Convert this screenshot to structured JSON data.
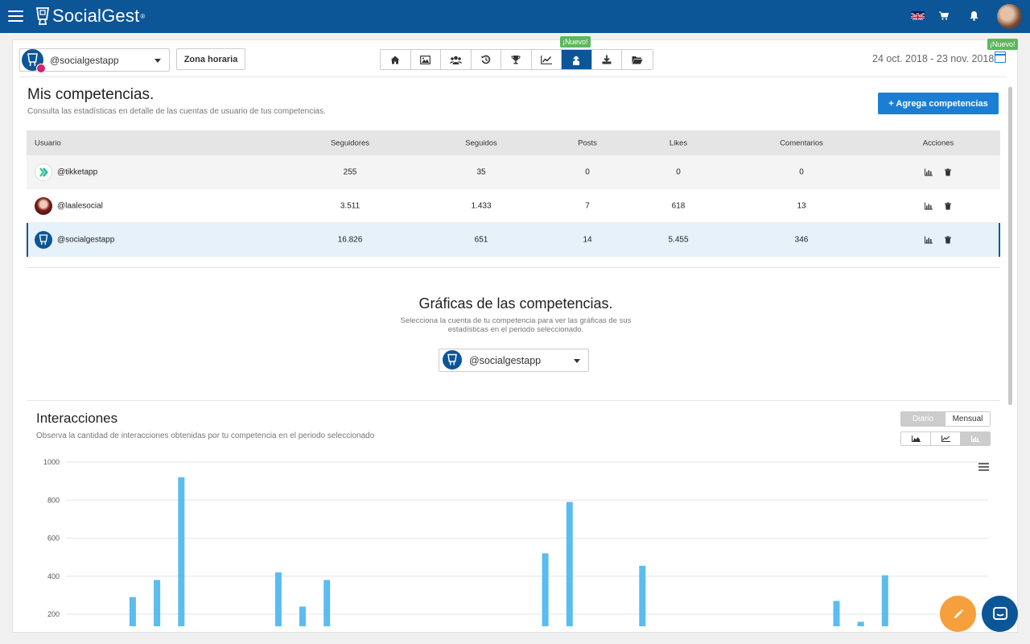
{
  "brand": {
    "name": "SocialGest",
    "tm": "®"
  },
  "account_select": {
    "value": "@socialgestapp"
  },
  "timezone_button": "Zona horaria",
  "toolbar": {
    "items": [
      "home-icon",
      "image-icon",
      "users-icon",
      "history-icon",
      "trophy-icon",
      "line-chart-icon",
      "competitors-icon",
      "download-icon",
      "folder-icon"
    ],
    "active_index": 6,
    "new_badge": "¡Nuevo!"
  },
  "date_badge": "¡Nuevo!",
  "date_range": "24 oct. 2018 - 23 nov. 2018",
  "competencias": {
    "title": "Mis competencias.",
    "subtitle": "Consulta las estadísticas en detalle de las cuentas de usuario de tus competencias.",
    "add_button": "+ Agrega competencias",
    "headers": {
      "usuario": "Usuario",
      "seguidores": "Seguidores",
      "seguidos": "Seguidos",
      "posts": "Posts",
      "likes": "Likes",
      "comentarios": "Comentarios",
      "acciones": "Acciones"
    },
    "rows": [
      {
        "user": "@tikketapp",
        "seguidores": "255",
        "seguidos": "35",
        "posts": "0",
        "likes": "0",
        "comentarios": "0"
      },
      {
        "user": "@laalesocial",
        "seguidores": "3.511",
        "seguidos": "1.433",
        "posts": "7",
        "likes": "618",
        "comentarios": "13"
      },
      {
        "user": "@socialgestapp",
        "seguidores": "16.826",
        "seguidos": "651",
        "posts": "14",
        "likes": "5.455",
        "comentarios": "346"
      }
    ]
  },
  "graficas": {
    "title": "Gráficas de las competencias.",
    "subtitle": "Selecciona la cuenta de tu competencia para ver las gráficas de sus estadísticas en el periodo seleccionado.",
    "select_value": "@socialgestapp"
  },
  "interacciones": {
    "title": "Interacciones",
    "subtitle": "Observa la cantidad de interacciones obtenidas por tu competencia en el periodo seleccionado",
    "period_options": [
      "Diario",
      "Mensual"
    ],
    "period_selected": "Diario",
    "chart_types": [
      "area-chart-icon",
      "line-chart-icon",
      "bar-chart-icon"
    ],
    "chart_type_selected": "bar-chart-icon"
  },
  "chart_data": {
    "type": "bar",
    "title": "",
    "xlabel": "",
    "ylabel": "",
    "ylim": [
      0,
      1000
    ],
    "yticks": [
      200,
      400,
      600,
      800,
      1000
    ],
    "values": [
      0,
      0,
      0,
      0,
      0,
      290,
      0,
      380,
      0,
      920,
      0,
      0,
      0,
      0,
      0,
      0,
      0,
      420,
      0,
      240,
      0,
      380,
      0,
      0,
      0,
      0,
      0,
      0,
      0,
      0,
      0,
      0,
      0,
      0,
      0,
      0,
      0,
      0,
      0,
      520,
      0,
      790,
      0,
      0,
      0,
      0,
      0,
      455,
      0,
      0,
      0,
      0,
      0,
      0,
      0,
      0,
      0,
      0,
      0,
      0,
      0,
      0,
      0,
      270,
      0,
      160,
      0,
      405,
      0,
      0,
      0,
      0,
      0,
      0,
      0,
      0
    ],
    "color": "#5bbcf0"
  }
}
